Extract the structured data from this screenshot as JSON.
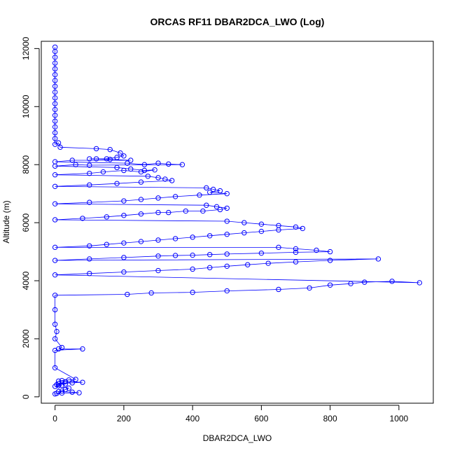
{
  "chart_data": {
    "type": "scatter",
    "title": "ORCAS RF11 DBAR2DCA_LWO (Log)",
    "xlabel": "DBAR2DCA_LWO",
    "ylabel": "Altitude (m)",
    "xlim": [
      -40,
      1100
    ],
    "ylim": [
      -220,
      12250
    ],
    "xticks": [
      0,
      200,
      400,
      600,
      800,
      1000
    ],
    "yticks": [
      0,
      2000,
      4000,
      6000,
      8000,
      10000,
      12000
    ],
    "grid": false,
    "series": [
      {
        "color": "#0000ff",
        "marker": "open-circle",
        "line": true,
        "points": [
          [
            0,
            12050
          ],
          [
            0,
            11900
          ],
          [
            0,
            11700
          ],
          [
            0,
            11500
          ],
          [
            0,
            11300
          ],
          [
            0,
            11100
          ],
          [
            0,
            10900
          ],
          [
            0,
            10700
          ],
          [
            0,
            10500
          ],
          [
            0,
            10300
          ],
          [
            0,
            10100
          ],
          [
            0,
            9900
          ],
          [
            0,
            9700
          ],
          [
            0,
            9500
          ],
          [
            0,
            9300
          ],
          [
            0,
            9100
          ],
          [
            0,
            8900
          ],
          [
            0,
            8700
          ],
          [
            10,
            8750
          ],
          [
            15,
            8600
          ],
          [
            120,
            8550
          ],
          [
            160,
            8520
          ],
          [
            190,
            8400
          ],
          [
            200,
            8300
          ],
          [
            180,
            8250
          ],
          [
            150,
            8200
          ],
          [
            120,
            8200
          ],
          [
            100,
            8200
          ],
          [
            160,
            8180
          ],
          [
            220,
            8150
          ],
          [
            50,
            8150
          ],
          [
            0,
            8100
          ],
          [
            210,
            8050
          ],
          [
            260,
            8000
          ],
          [
            300,
            8050
          ],
          [
            330,
            8020
          ],
          [
            370,
            8000
          ],
          [
            100,
            7980
          ],
          [
            60,
            8000
          ],
          [
            0,
            7950
          ],
          [
            180,
            7900
          ],
          [
            220,
            7850
          ],
          [
            260,
            7800
          ],
          [
            290,
            7820
          ],
          [
            250,
            7750
          ],
          [
            200,
            7800
          ],
          [
            140,
            7750
          ],
          [
            100,
            7700
          ],
          [
            0,
            7650
          ],
          [
            270,
            7600
          ],
          [
            300,
            7550
          ],
          [
            320,
            7500
          ],
          [
            340,
            7450
          ],
          [
            250,
            7400
          ],
          [
            180,
            7350
          ],
          [
            100,
            7300
          ],
          [
            0,
            7250
          ],
          [
            440,
            7200
          ],
          [
            460,
            7150
          ],
          [
            480,
            7100
          ],
          [
            450,
            7050
          ],
          [
            500,
            7000
          ],
          [
            420,
            6950
          ],
          [
            350,
            6900
          ],
          [
            300,
            6850
          ],
          [
            250,
            6800
          ],
          [
            200,
            6750
          ],
          [
            100,
            6700
          ],
          [
            0,
            6650
          ],
          [
            440,
            6600
          ],
          [
            470,
            6550
          ],
          [
            500,
            6500
          ],
          [
            480,
            6450
          ],
          [
            430,
            6400
          ],
          [
            380,
            6400
          ],
          [
            330,
            6350
          ],
          [
            300,
            6350
          ],
          [
            250,
            6300
          ],
          [
            200,
            6250
          ],
          [
            150,
            6200
          ],
          [
            80,
            6150
          ],
          [
            0,
            6100
          ],
          [
            500,
            6050
          ],
          [
            550,
            6000
          ],
          [
            600,
            5950
          ],
          [
            650,
            5900
          ],
          [
            700,
            5850
          ],
          [
            720,
            5800
          ],
          [
            650,
            5750
          ],
          [
            600,
            5700
          ],
          [
            550,
            5650
          ],
          [
            500,
            5600
          ],
          [
            450,
            5550
          ],
          [
            400,
            5500
          ],
          [
            350,
            5450
          ],
          [
            300,
            5400
          ],
          [
            250,
            5350
          ],
          [
            200,
            5300
          ],
          [
            150,
            5250
          ],
          [
            100,
            5200
          ],
          [
            0,
            5150
          ],
          [
            650,
            5150
          ],
          [
            700,
            5100
          ],
          [
            760,
            5050
          ],
          [
            800,
            5000
          ],
          [
            700,
            4980
          ],
          [
            600,
            4950
          ],
          [
            500,
            4920
          ],
          [
            450,
            4900
          ],
          [
            400,
            4880
          ],
          [
            350,
            4870
          ],
          [
            300,
            4850
          ],
          [
            200,
            4800
          ],
          [
            100,
            4750
          ],
          [
            0,
            4700
          ],
          [
            940,
            4750
          ],
          [
            800,
            4700
          ],
          [
            700,
            4650
          ],
          [
            620,
            4600
          ],
          [
            560,
            4550
          ],
          [
            500,
            4500
          ],
          [
            450,
            4450
          ],
          [
            400,
            4400
          ],
          [
            300,
            4350
          ],
          [
            200,
            4300
          ],
          [
            100,
            4250
          ],
          [
            0,
            4200
          ],
          [
            1060,
            3930
          ],
          [
            980,
            3980
          ],
          [
            900,
            3950
          ],
          [
            860,
            3900
          ],
          [
            800,
            3850
          ],
          [
            740,
            3750
          ],
          [
            650,
            3700
          ],
          [
            500,
            3650
          ],
          [
            400,
            3600
          ],
          [
            280,
            3580
          ],
          [
            210,
            3530
          ],
          [
            0,
            3500
          ],
          [
            0,
            3000
          ],
          [
            0,
            2500
          ],
          [
            5,
            2250
          ],
          [
            0,
            2000
          ],
          [
            20,
            1700
          ],
          [
            10,
            1650
          ],
          [
            80,
            1650
          ],
          [
            0,
            1600
          ],
          [
            0,
            1000
          ],
          [
            60,
            600
          ],
          [
            40,
            580
          ],
          [
            20,
            560
          ],
          [
            10,
            540
          ],
          [
            30,
            520
          ],
          [
            80,
            500
          ],
          [
            50,
            480
          ],
          [
            10,
            460
          ],
          [
            30,
            440
          ],
          [
            5,
            420
          ],
          [
            20,
            400
          ],
          [
            10,
            380
          ],
          [
            0,
            360
          ],
          [
            40,
            300
          ],
          [
            30,
            250
          ],
          [
            20,
            200
          ],
          [
            10,
            180
          ],
          [
            50,
            160
          ],
          [
            70,
            140
          ],
          [
            20,
            130
          ],
          [
            5,
            120
          ],
          [
            0,
            100
          ]
        ]
      }
    ]
  }
}
